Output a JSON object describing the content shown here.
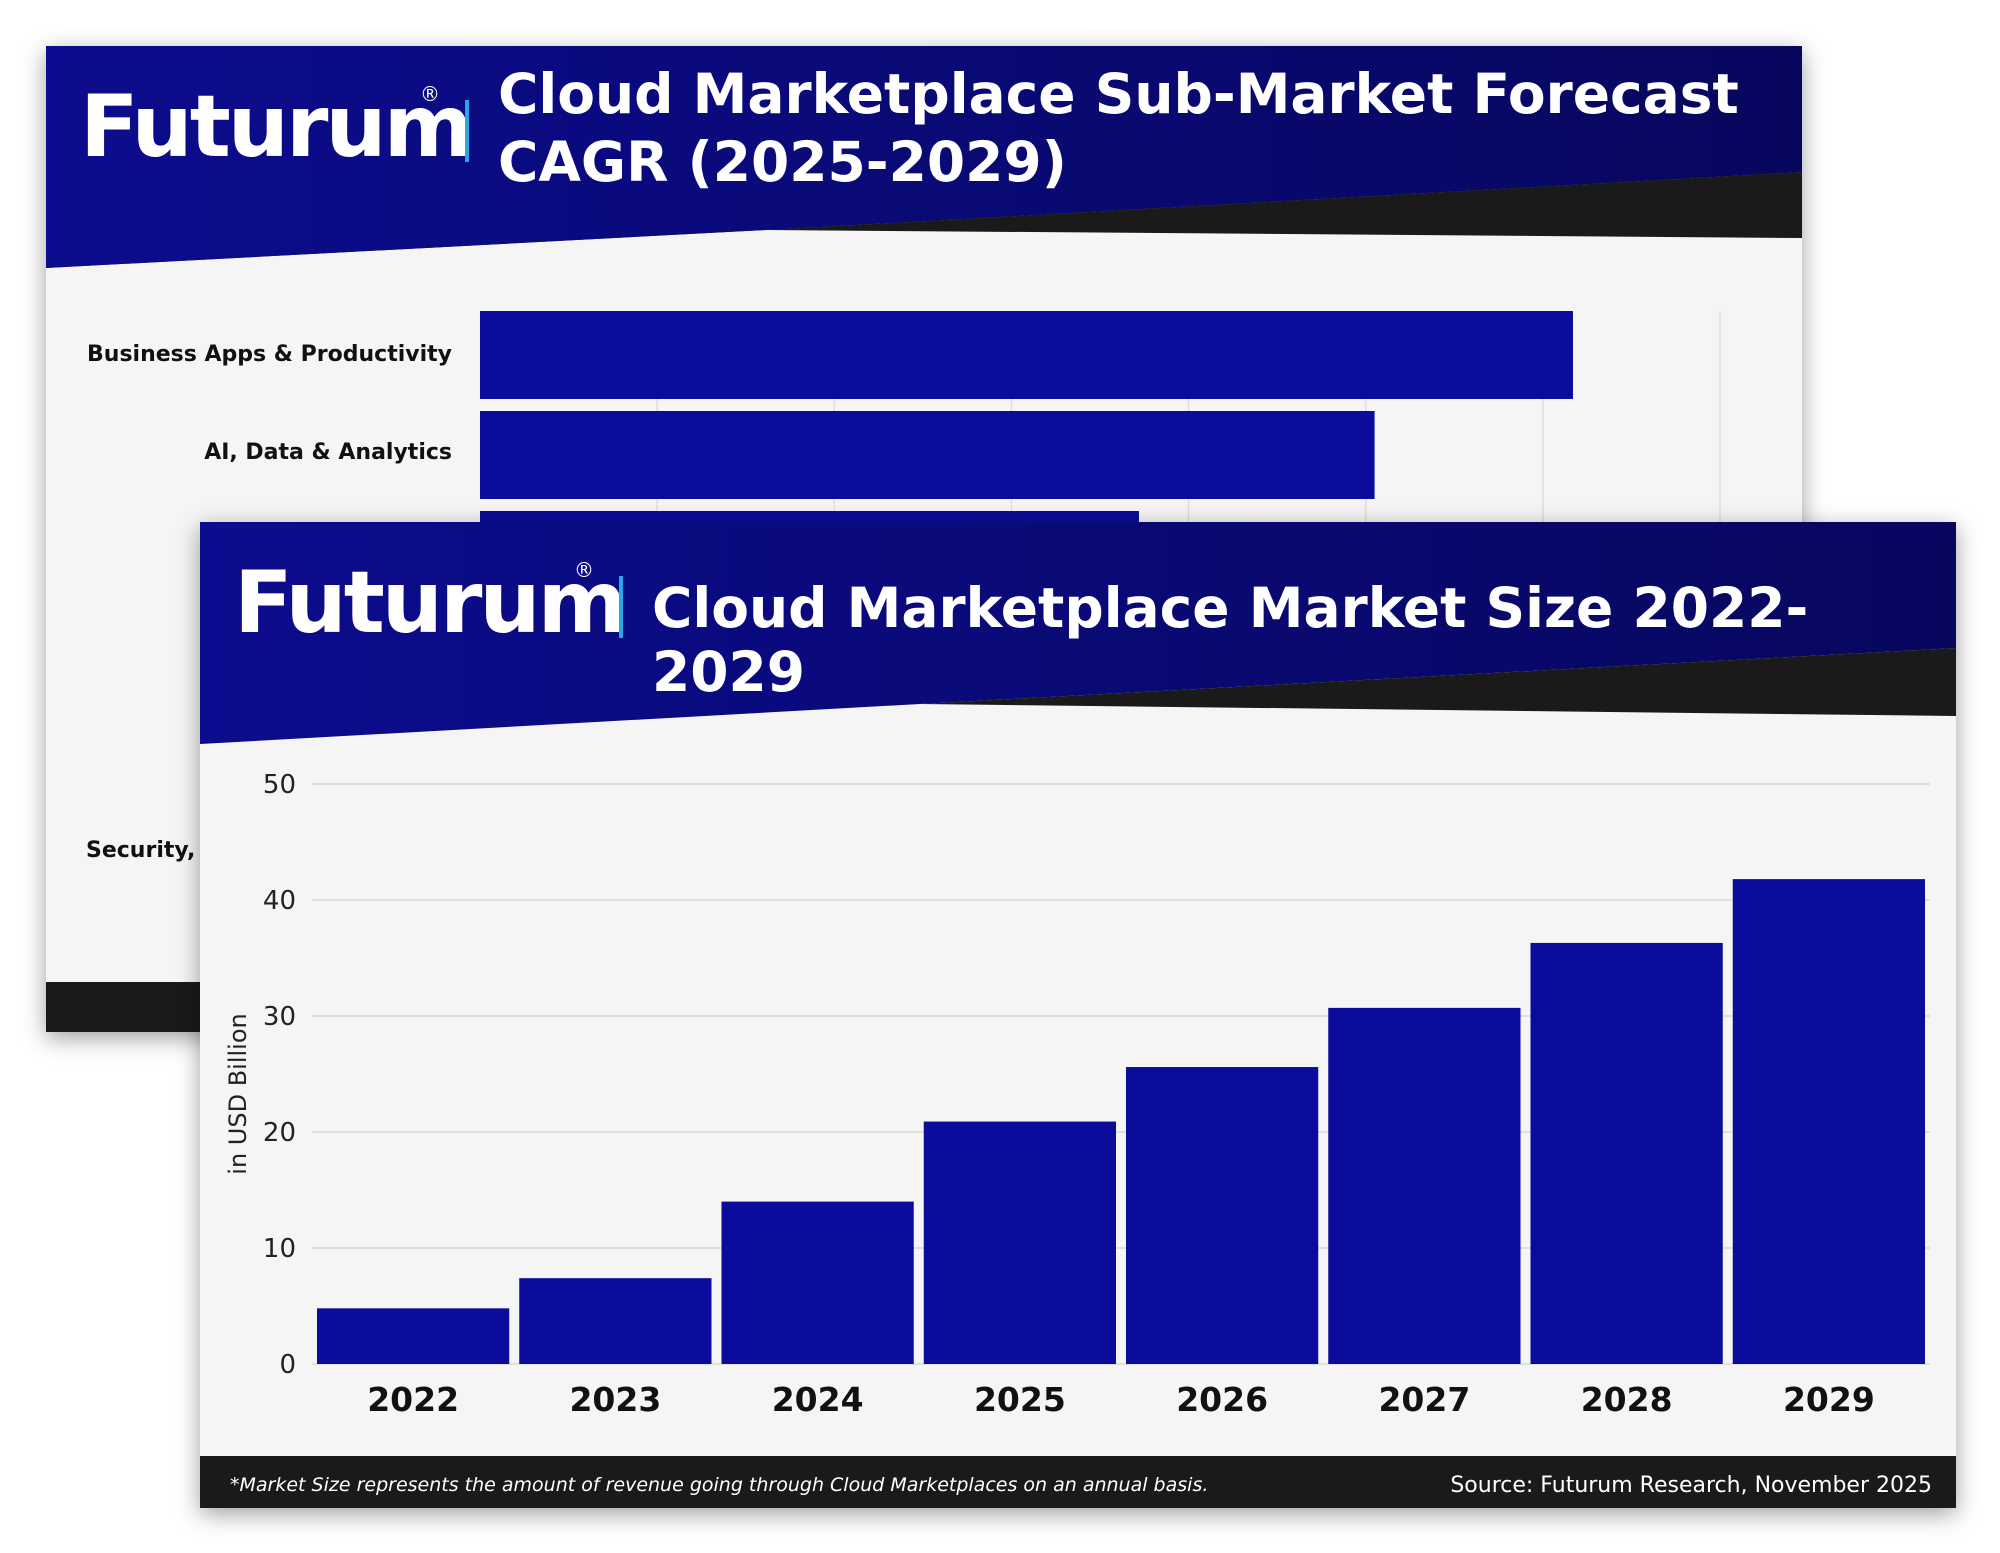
{
  "colors": {
    "header_blue": "#0a0a7e",
    "bar_blue": "#0c0c9c",
    "dark": "#1a1a1a",
    "accent_divider": "#2aa5e8",
    "background": "#f5f5f5"
  },
  "brand": {
    "name": "Futurum",
    "reg_mark": "®"
  },
  "back_card": {
    "title_line1": "Cloud Marketplace Sub-Market Forecast",
    "title_line2": "CAGR (2025-2029)",
    "categories_visible": [
      "Business Apps & Productivity",
      "AI, Data & Analytics"
    ],
    "partial_label": "Security, Id"
  },
  "front_card": {
    "title": "Cloud Marketplace Market Size 2022-2029",
    "footnote": "*Market Size represents the amount of revenue going through Cloud Marketplaces on an annual basis.",
    "source": "Source: Futurum Research, November 2025"
  },
  "chart_data": [
    {
      "type": "bar",
      "orientation": "horizontal",
      "title": "Cloud Marketplace Sub-Market Forecast CAGR (2025-2029)",
      "categories": [
        "Business Apps & Productivity",
        "AI, Data & Analytics",
        ""
      ],
      "values": [
        0.617,
        0.505,
        0.372
      ],
      "xlim": [
        0,
        0.7
      ],
      "grid": true,
      "note": "partially occluded; values are relative bar lengths (unit not visible)"
    },
    {
      "type": "bar",
      "title": "Cloud Marketplace Market Size 2022-2029",
      "categories": [
        "2022",
        "2023",
        "2024",
        "2025",
        "2026",
        "2027",
        "2028",
        "2029"
      ],
      "values": [
        4.8,
        7.4,
        14.0,
        20.9,
        25.6,
        30.7,
        36.3,
        41.8
      ],
      "ylabel": "in USD Billion",
      "xlabel": "",
      "ylim": [
        0,
        50
      ],
      "yticks": [
        0,
        10,
        20,
        30,
        40,
        50
      ],
      "grid": true
    }
  ]
}
